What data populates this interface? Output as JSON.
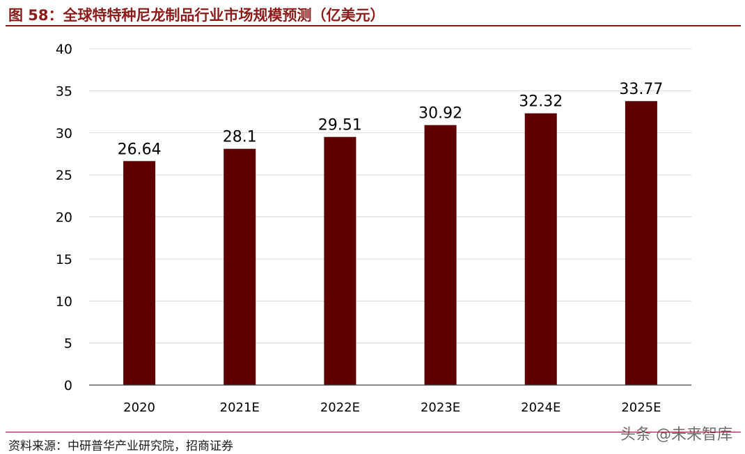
{
  "header": {
    "title": "图 58：全球特特种尼龙制品行业市场规模预测（亿美元）"
  },
  "footer": {
    "source": "资料来源：中研普华产业研究院，招商证券",
    "watermark": "头条 @未来智库"
  },
  "colors": {
    "bar": "#5e0000",
    "title": "#8b1a1a",
    "grid": "#d9d9d9",
    "axis": "#404040"
  },
  "chart_data": {
    "type": "bar",
    "title": "",
    "xlabel": "",
    "ylabel": "",
    "categories": [
      "2020",
      "2021E",
      "2022E",
      "2023E",
      "2024E",
      "2025E"
    ],
    "values": [
      26.64,
      28.1,
      29.51,
      30.92,
      32.32,
      33.77
    ],
    "value_labels": [
      "26.64",
      "28.1",
      "29.51",
      "30.92",
      "32.32",
      "33.77"
    ],
    "ylim": [
      0,
      40
    ],
    "yticks": [
      0,
      5,
      10,
      15,
      20,
      25,
      30,
      35,
      40
    ],
    "grid": true,
    "legend": "none"
  }
}
